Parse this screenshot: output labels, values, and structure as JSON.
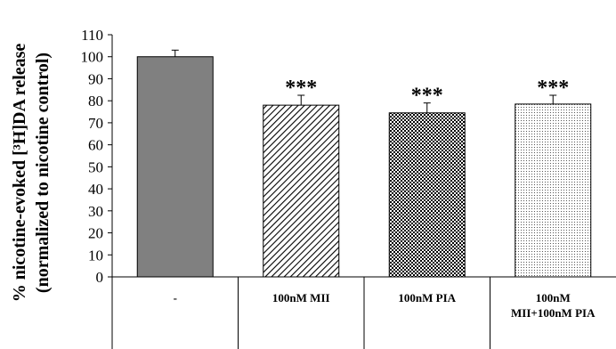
{
  "chart_data": {
    "type": "bar",
    "title": "",
    "xlabel": "",
    "ylabel_line1": "% nicotine-evoked [³H]DA release",
    "ylabel_line2": "(normalized to nicotine control)",
    "ylim": [
      0,
      110
    ],
    "yticks": [
      "0",
      "10",
      "20",
      "30",
      "40",
      "50",
      "60",
      "70",
      "80",
      "90",
      "100",
      "110"
    ],
    "categories": [
      {
        "lines": [
          "-"
        ]
      },
      {
        "lines": [
          "100nM MII"
        ]
      },
      {
        "lines": [
          "100nM PIA"
        ]
      },
      {
        "lines": [
          "100nM",
          "MII+100nM PIA"
        ]
      }
    ],
    "values": [
      100,
      78,
      74.5,
      78.5
    ],
    "errors": [
      3,
      4.5,
      4.5,
      4
    ],
    "significance": [
      "",
      "***",
      "***",
      "***"
    ],
    "fills": [
      "solid-gray",
      "diagonal-stripes",
      "checker",
      "dots"
    ],
    "colors": {
      "solid": "#808080",
      "stroke": "#000000"
    },
    "grid": false,
    "legend": "none"
  }
}
